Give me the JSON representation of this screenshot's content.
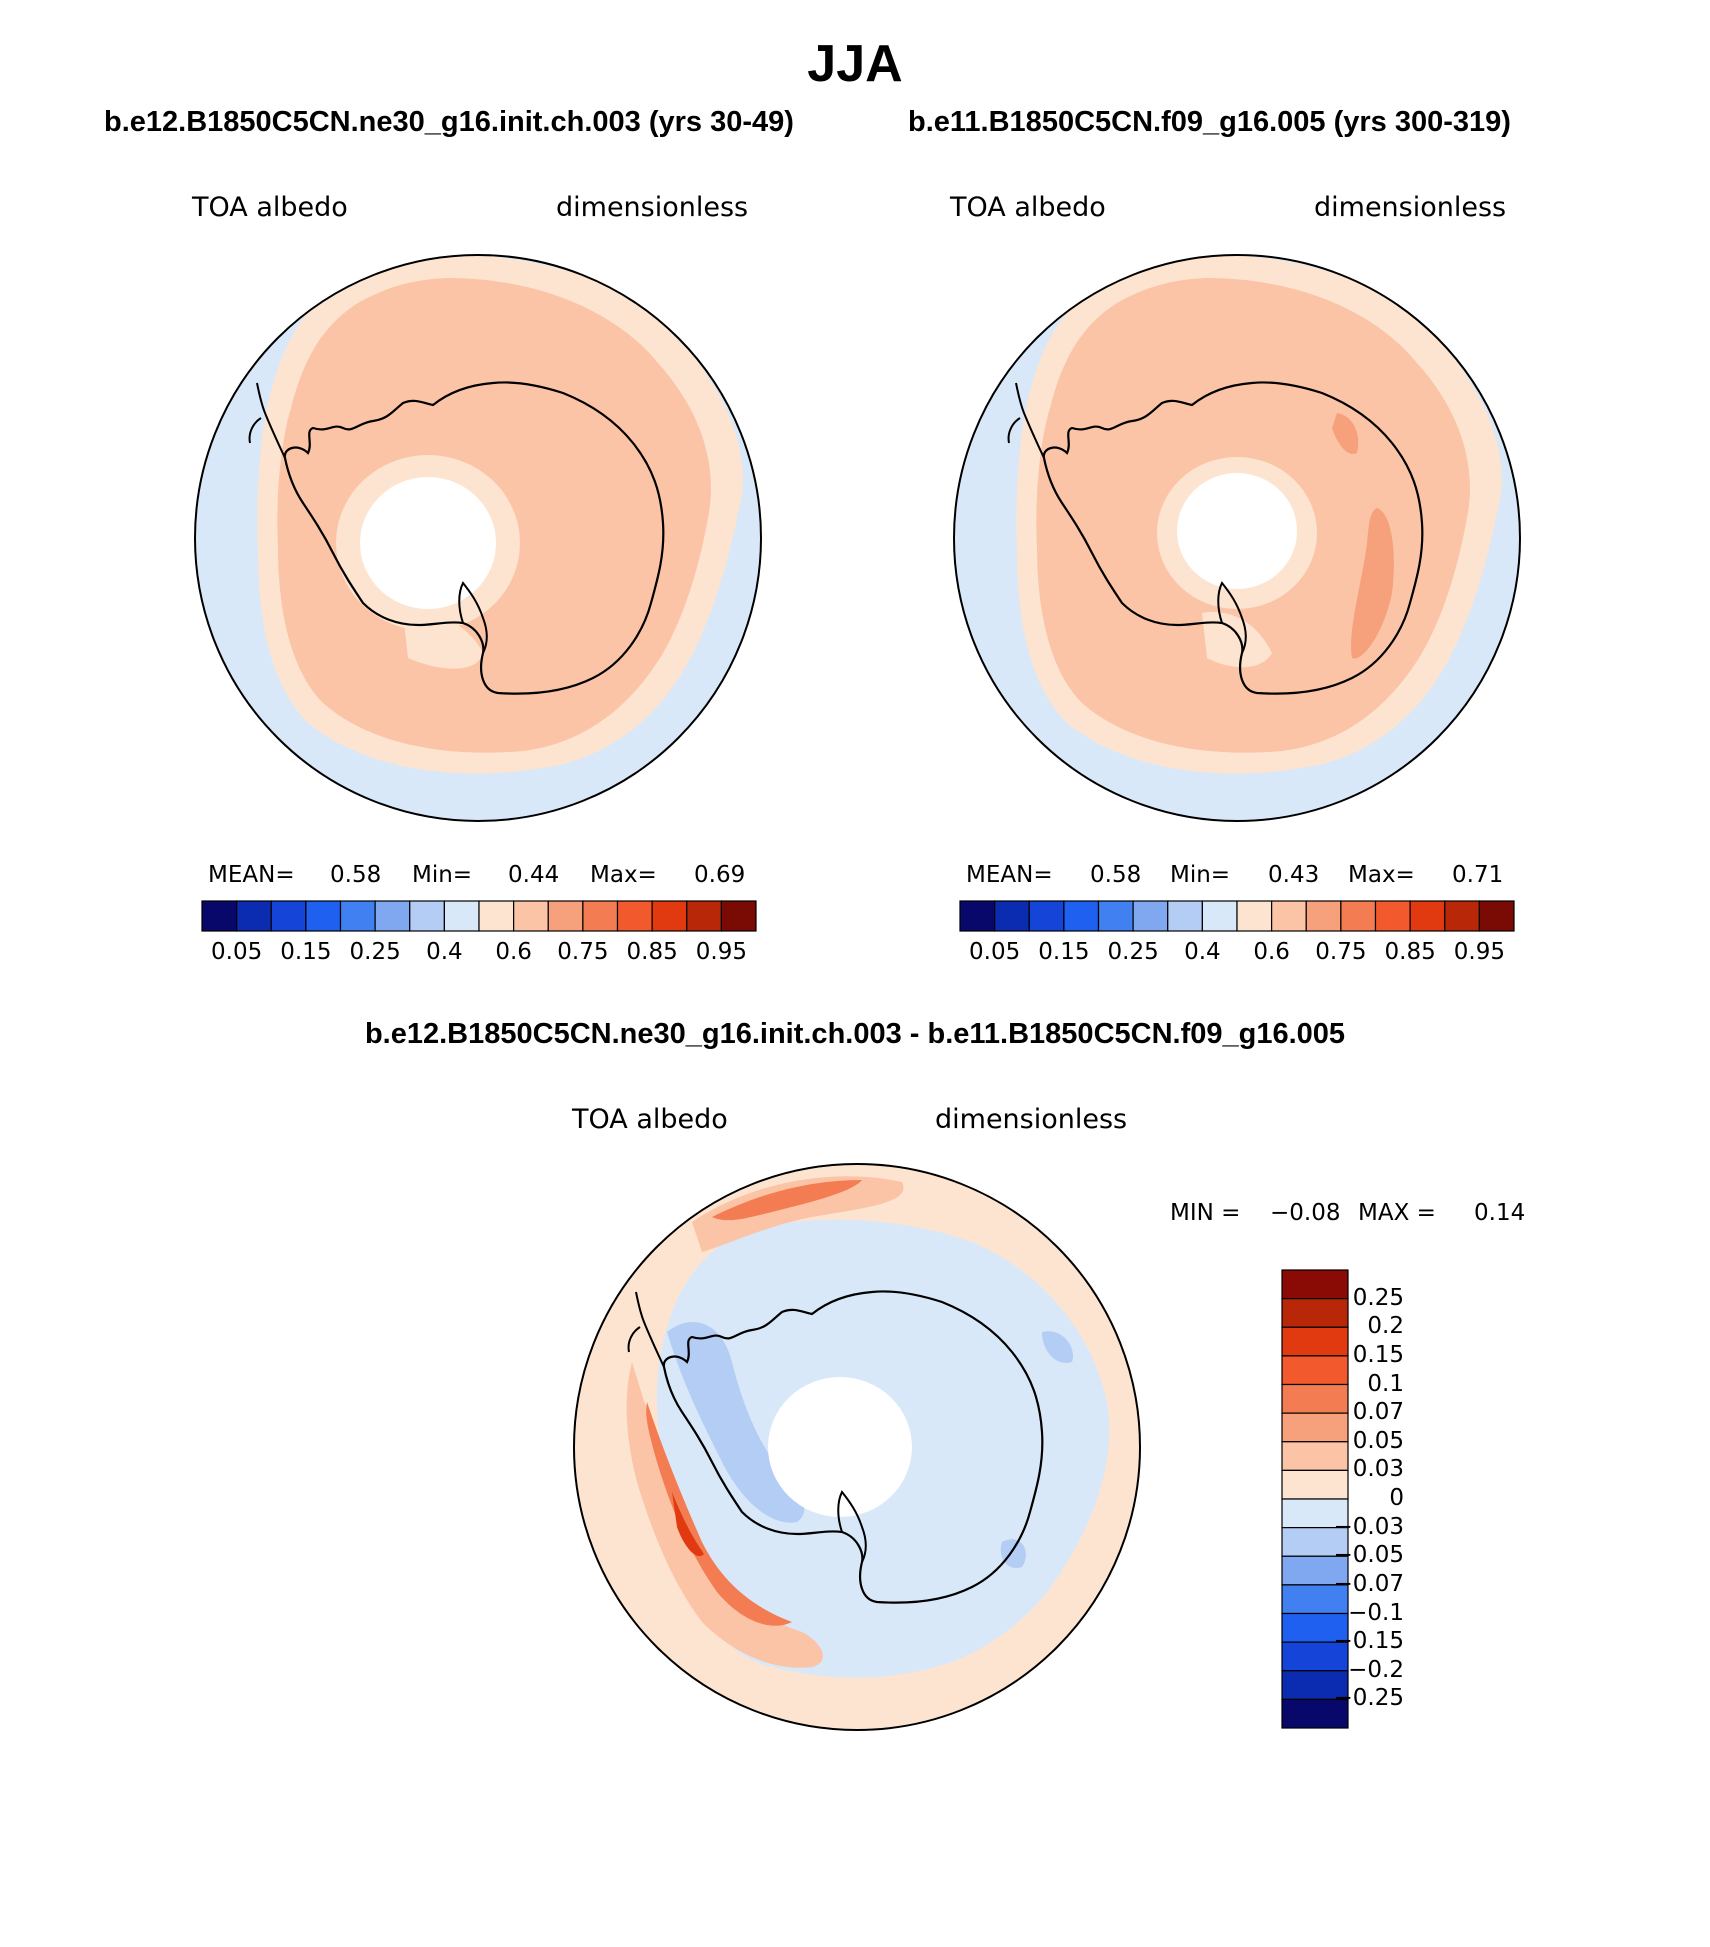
{
  "figure": {
    "season": "JJA"
  },
  "panel_left": {
    "case_title": "b.e12.B1850C5CN.ne30_g16.init.ch.003 (yrs 30-49)",
    "variable": "TOA albedo",
    "units": "dimensionless",
    "stats": {
      "mean_label": "MEAN=",
      "mean": "0.58",
      "min_label": "Min=",
      "min": "0.44",
      "max_label": "Max=",
      "max": "0.69"
    }
  },
  "panel_right": {
    "case_title": "b.e11.B1850C5CN.f09_g16.005 (yrs 300-319)",
    "variable": "TOA albedo",
    "units": "dimensionless",
    "stats": {
      "mean_label": "MEAN=",
      "mean": "0.58",
      "min_label": "Min=",
      "min": "0.43",
      "max_label": "Max=",
      "max": "0.71"
    }
  },
  "panel_diff": {
    "case_title": "b.e12.B1850C5CN.ne30_g16.init.ch.003 - b.e11.B1850C5CN.f09_g16.005",
    "variable": "TOA albedo",
    "units": "dimensionless",
    "stats": {
      "min_label": "MIN =",
      "min": "−0.08",
      "max_label": "MAX =",
      "max": "0.14"
    }
  },
  "colorbar_abs": {
    "colors": [
      "#08086b",
      "#0b2bb0",
      "#1444d8",
      "#2060f0",
      "#4080f0",
      "#80a8f0",
      "#b4cdf4",
      "#d8e8f8",
      "#fde4d0",
      "#fbc4a6",
      "#f6a07c",
      "#f47c52",
      "#f25a2e",
      "#e23a10",
      "#b82808",
      "#7a0a04"
    ],
    "tick_labels": [
      "0.05",
      "0.15",
      "0.25",
      "0.4",
      "0.6",
      "0.75",
      "0.85",
      "0.95"
    ]
  },
  "colorbar_diff": {
    "colors_top_to_bottom": [
      "#8a0a06",
      "#b82808",
      "#e23a10",
      "#f25a2e",
      "#f47c52",
      "#f6a07c",
      "#fbc4a6",
      "#fde4d0",
      "#d8e8f8",
      "#b4cdf4",
      "#80a8f0",
      "#4080f0",
      "#2060f0",
      "#1444d8",
      "#0b2bb0",
      "#08086b"
    ],
    "tick_labels": [
      "0.25",
      "0.2",
      "0.15",
      "0.1",
      "0.07",
      "0.05",
      "0.03",
      "0",
      "−0.03",
      "−0.05",
      "−0.07",
      "−0.1",
      "−0.15",
      "−0.2",
      "−0.25"
    ]
  },
  "map_colors": {
    "ocean_low": "#d8e8f8",
    "band_light": "#fde4d0",
    "band_mid": "#fbc4a6",
    "band_strong": "#f6a07c",
    "diff_neg_light": "#d8e8f8",
    "diff_neg_mid": "#b4cdf4",
    "diff_neg_strong": "#80a8f0",
    "diff_pos_light": "#fde4d0",
    "diff_pos_mid": "#fbc4a6",
    "diff_pos_strong": "#f47c52",
    "diff_pos_max": "#e23a10",
    "missing": "#ffffff",
    "coastline": "#000000"
  }
}
